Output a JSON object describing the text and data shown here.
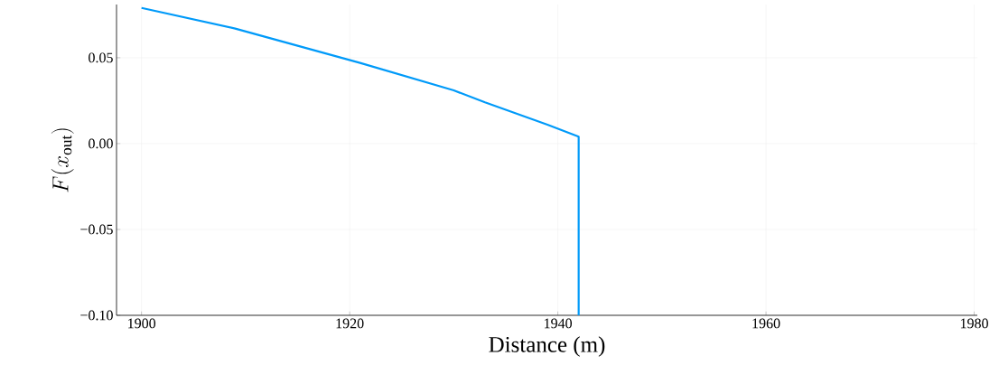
{
  "chart_data": {
    "type": "line",
    "xlabel": "Distance (m)",
    "ylabel": "F(x_{\\mathrm{out}})",
    "x": [
      1900,
      1909,
      1912,
      1921,
      1930,
      1933,
      1939,
      1942,
      1942
    ],
    "series": [
      {
        "color": "#009af9",
        "values": [
          0.079,
          0.067,
          0.062,
          0.047,
          0.031,
          0.024,
          0.011,
          0.004,
          -0.1
        ]
      }
    ],
    "xlim": [
      1897.6,
      1980.3
    ],
    "ylim": [
      -0.1,
      0.081
    ],
    "xticks": [
      1900,
      1920,
      1940,
      1960,
      1980
    ],
    "yticks": [
      {
        "value": -0.1,
        "label": "−0.10"
      },
      {
        "value": -0.05,
        "label": "−0.05"
      },
      {
        "value": 0,
        "label": "0.00"
      },
      {
        "value": 0.05,
        "label": "0.05"
      }
    ],
    "grid": true,
    "line_style": "solid",
    "marker": "none"
  }
}
